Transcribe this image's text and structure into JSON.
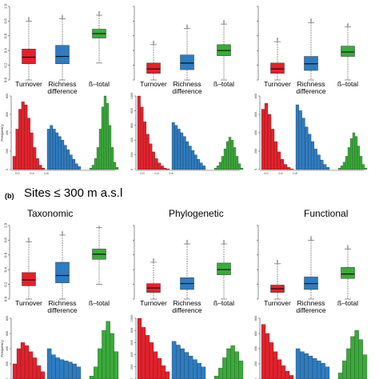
{
  "figure": {
    "panel_b_label": "(b)",
    "panel_b_title": "Sites ≤ 300 m a.s.l",
    "col_titles": [
      "Taxonomic",
      "Phylogenetic",
      "Functional"
    ]
  },
  "colors": {
    "turnover": "#e4212b",
    "richness": "#2e7cc1",
    "total": "#3aab3a"
  },
  "chart_data": {
    "type": "box",
    "categories": [
      "Turnover",
      "Richness\ndifference",
      "ß–total"
    ],
    "category_labels": [
      "Turnover",
      "Richness",
      "difference",
      "ß–total"
    ],
    "box_y_ticks": [
      "0.0",
      "0.2",
      "0.4",
      "0.6",
      "0.8",
      "1.0"
    ],
    "ylim": [
      0,
      1
    ],
    "hist_ylabel": "Frequency",
    "hist_x_ticks": [
      "0.0",
      "0.4",
      "0.8"
    ],
    "panels": [
      {
        "row": "a",
        "col": 0,
        "boxes": [
          {
            "min": 0.0,
            "q1": 0.22,
            "med": 0.31,
            "q3": 0.42,
            "max": 0.8
          },
          {
            "min": 0.0,
            "q1": 0.22,
            "med": 0.32,
            "q3": 0.47,
            "max": 0.83
          },
          {
            "min": 0.23,
            "q1": 0.57,
            "med": 0.63,
            "q3": 0.69,
            "max": 0.88
          }
        ],
        "hist_yticks": [
          "0",
          "200",
          "400",
          "600",
          "800"
        ],
        "hists": [
          [
            0.18,
            0.55,
            0.82,
            0.92,
            0.88,
            0.7,
            0.5,
            0.3,
            0.15,
            0.06,
            0.02
          ],
          [
            0.55,
            0.6,
            0.55,
            0.5,
            0.45,
            0.4,
            0.33,
            0.27,
            0.2,
            0.14,
            0.08,
            0.04
          ],
          [
            0.02,
            0.06,
            0.15,
            0.3,
            0.55,
            0.85,
            1.0,
            0.9,
            0.6,
            0.3,
            0.1,
            0.03
          ]
        ]
      },
      {
        "row": "a",
        "col": 1,
        "boxes": [
          {
            "min": 0.0,
            "q1": 0.09,
            "med": 0.15,
            "q3": 0.23,
            "max": 0.48
          },
          {
            "min": 0.0,
            "q1": 0.14,
            "med": 0.23,
            "q3": 0.34,
            "max": 0.7
          },
          {
            "min": 0.0,
            "q1": 0.33,
            "med": 0.4,
            "q3": 0.48,
            "max": 0.76
          }
        ],
        "hist_yticks": [
          "0",
          "200",
          "400",
          "600",
          "800",
          "1000"
        ],
        "hists": [
          [
            1.0,
            0.85,
            0.65,
            0.48,
            0.35,
            0.24,
            0.15,
            0.09,
            0.05,
            0.02,
            0.01
          ],
          [
            0.64,
            0.6,
            0.55,
            0.5,
            0.45,
            0.38,
            0.32,
            0.26,
            0.2,
            0.14,
            0.09,
            0.05
          ],
          [
            0.02,
            0.05,
            0.1,
            0.18,
            0.28,
            0.38,
            0.44,
            0.4,
            0.3,
            0.18,
            0.08,
            0.02
          ]
        ]
      },
      {
        "row": "a",
        "col": 2,
        "boxes": [
          {
            "min": 0.0,
            "q1": 0.09,
            "med": 0.15,
            "q3": 0.23,
            "max": 0.52
          },
          {
            "min": 0.0,
            "q1": 0.13,
            "med": 0.22,
            "q3": 0.32,
            "max": 0.78
          },
          {
            "min": 0.0,
            "q1": 0.32,
            "med": 0.38,
            "q3": 0.46,
            "max": 0.72
          }
        ],
        "hist_yticks": [
          "0",
          "200",
          "400",
          "600",
          "800"
        ],
        "hists": [
          [
            0.82,
            0.9,
            0.75,
            0.55,
            0.38,
            0.24,
            0.14,
            0.07,
            0.03,
            0.01
          ],
          [
            0.88,
            0.8,
            0.7,
            0.58,
            0.48,
            0.38,
            0.28,
            0.2,
            0.13,
            0.07,
            0.03
          ],
          [
            0.02,
            0.05,
            0.1,
            0.18,
            0.3,
            0.42,
            0.5,
            0.45,
            0.32,
            0.18,
            0.07,
            0.02
          ]
        ]
      },
      {
        "row": "b",
        "col": 0,
        "boxes": [
          {
            "min": 0.0,
            "q1": 0.18,
            "med": 0.26,
            "q3": 0.36,
            "max": 0.78
          },
          {
            "min": 0.0,
            "q1": 0.22,
            "med": 0.32,
            "q3": 0.5,
            "max": 0.87
          },
          {
            "min": 0.2,
            "q1": 0.54,
            "med": 0.61,
            "q3": 0.68,
            "max": 0.97
          }
        ],
        "hist_yticks": [
          "0",
          "200",
          "400",
          "600",
          "800"
        ],
        "hists": [
          [
            0.25,
            0.5,
            0.6,
            0.55,
            0.45,
            0.35,
            0.22,
            0.12
          ],
          [
            0.5,
            0.4,
            0.35,
            0.32,
            0.3,
            0.28,
            0.25,
            0.2
          ],
          [
            0.05,
            0.2,
            0.5,
            0.8,
            0.95,
            0.75,
            0.45
          ]
        ]
      },
      {
        "row": "b",
        "col": 1,
        "boxes": [
          {
            "min": 0.0,
            "q1": 0.09,
            "med": 0.15,
            "q3": 0.21,
            "max": 0.5
          },
          {
            "min": 0.0,
            "q1": 0.13,
            "med": 0.21,
            "q3": 0.29,
            "max": 0.75
          },
          {
            "min": 0.0,
            "q1": 0.33,
            "med": 0.4,
            "q3": 0.49,
            "max": 0.75
          }
        ],
        "hist_yticks": [
          "0",
          "200",
          "400",
          "600",
          "800",
          "1000"
        ],
        "hists": [
          [
            1.0,
            0.85,
            0.72,
            0.6,
            0.45,
            0.34,
            0.22,
            0.12
          ],
          [
            0.62,
            0.56,
            0.5,
            0.44,
            0.38,
            0.32,
            0.26,
            0.2
          ],
          [
            0.05,
            0.18,
            0.35,
            0.5,
            0.55,
            0.45,
            0.3
          ]
        ]
      },
      {
        "row": "b",
        "col": 2,
        "boxes": [
          {
            "min": 0.0,
            "q1": 0.09,
            "med": 0.14,
            "q3": 0.19,
            "max": 0.48
          },
          {
            "min": 0.0,
            "q1": 0.13,
            "med": 0.21,
            "q3": 0.3,
            "max": 0.8
          },
          {
            "min": 0.0,
            "q1": 0.28,
            "med": 0.34,
            "q3": 0.43,
            "max": 0.68
          }
        ],
        "hist_yticks": [
          "0",
          "200",
          "400",
          "600",
          "800"
        ],
        "hists": [
          [
            0.9,
            0.75,
            0.6,
            0.45,
            0.32,
            0.22,
            0.13,
            0.06
          ],
          [
            0.5,
            0.45,
            0.42,
            0.38,
            0.34,
            0.3,
            0.26,
            0.2
          ],
          [
            0.1,
            0.3,
            0.5,
            0.7,
            0.8,
            0.65,
            0.4
          ]
        ]
      }
    ]
  }
}
